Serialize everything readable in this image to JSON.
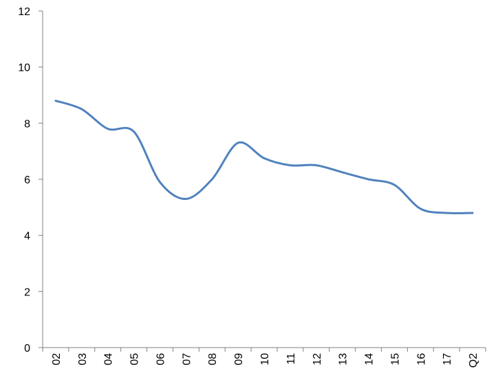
{
  "chart_data": {
    "type": "line",
    "title": "",
    "xlabel": "",
    "ylabel": "",
    "ylim": [
      0,
      12
    ],
    "yticks": [
      "0",
      "2",
      "4",
      "6",
      "8",
      "10",
      "12"
    ],
    "grid": false,
    "categories": [
      "02",
      "03",
      "04",
      "05",
      "06",
      "07",
      "08",
      "09",
      "10",
      "11",
      "12",
      "13",
      "14",
      "15",
      "16",
      "17",
      "Q2"
    ],
    "series": [
      {
        "values": [
          8.8,
          8.5,
          7.8,
          7.7,
          5.9,
          5.3,
          6.0,
          7.3,
          6.75,
          6.5,
          6.5,
          6.25,
          6.0,
          5.8,
          4.95,
          4.8,
          4.8
        ]
      }
    ],
    "colors": {
      "line": "#4f81bd",
      "axis": "#7f7f7f"
    }
  }
}
